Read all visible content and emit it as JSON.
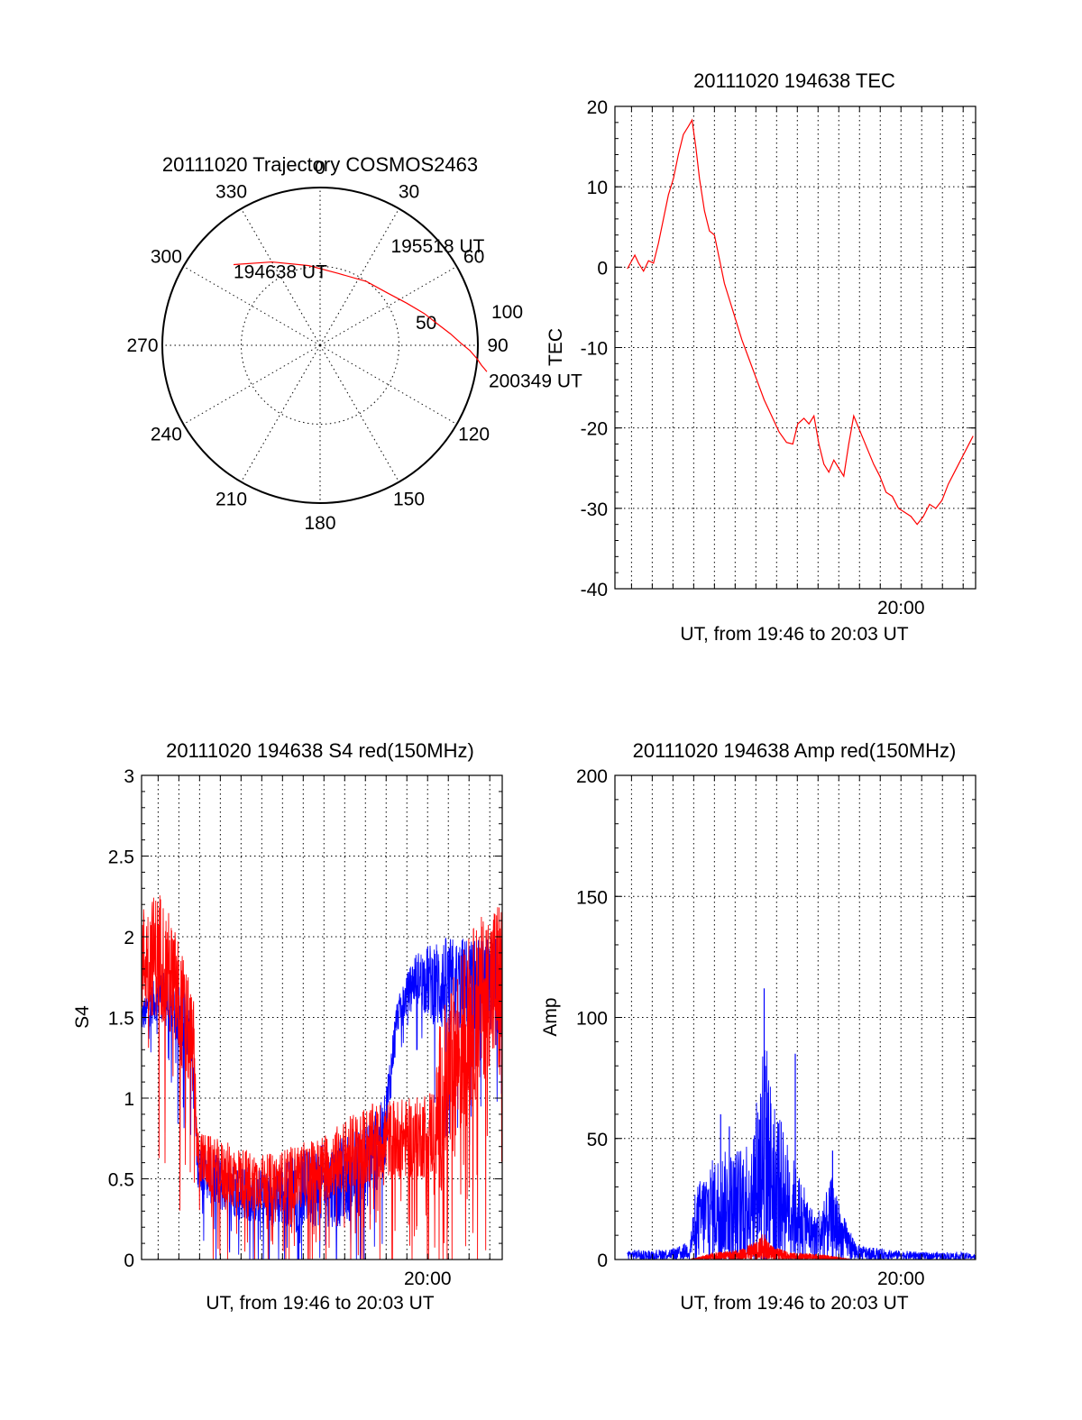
{
  "colors": {
    "primary": "#ff0000",
    "secondary": "#0000ff",
    "axes": "#000000"
  },
  "chart_data": [
    {
      "id": "trajectory",
      "type": "polar",
      "title": "20111020 Trajectory COSMOS2463",
      "angle_labels": [
        "0",
        "30",
        "60",
        "90",
        "120",
        "150",
        "180",
        "210",
        "240",
        "270",
        "300",
        "330"
      ],
      "radius_labels": [
        "50",
        "100"
      ],
      "rmax": 100,
      "grid": true,
      "track": {
        "color": "#ff0000",
        "points": [
          {
            "az": 313,
            "zd": 75
          },
          {
            "az": 330,
            "zd": 61
          },
          {
            "az": 352,
            "zd": 51
          },
          {
            "az": 14,
            "zd": 47
          },
          {
            "az": 36,
            "zd": 50
          },
          {
            "az": 52,
            "zd": 54
          },
          {
            "az": 64,
            "zd": 61
          },
          {
            "az": 73,
            "zd": 69
          },
          {
            "az": 80,
            "zd": 76
          },
          {
            "az": 85,
            "zd": 83
          },
          {
            "az": 89,
            "zd": 89
          },
          {
            "az": 92,
            "zd": 95
          },
          {
            "az": 95,
            "zd": 100
          },
          {
            "az": 97,
            "zd": 103
          },
          {
            "az": 98,
            "zd": 105
          },
          {
            "az": 99,
            "zd": 107
          }
        ],
        "labels": [
          {
            "text": "194638 UT",
            "point": 0
          },
          {
            "text": "195518 UT",
            "point": 5
          },
          {
            "text": "200349 UT",
            "point": 15
          }
        ]
      }
    },
    {
      "id": "tec",
      "type": "line",
      "title": "20111020 194638 TEC",
      "xlabel": "UT, from 19:46 to 20:03 UT",
      "ylabel": "TEC",
      "xlim": [
        19.77,
        20.06
      ],
      "ylim": [
        -40,
        20
      ],
      "yticks": [
        20,
        10,
        0,
        -10,
        -20,
        -30,
        -40
      ],
      "xticklabels": [
        {
          "x": 20.0,
          "label": "20:00"
        }
      ],
      "grid": true,
      "series": [
        {
          "color": "#ff0000",
          "points": [
            [
              19.78,
              -0.2
            ],
            [
              19.786,
              1.5
            ],
            [
              19.789,
              0.5
            ],
            [
              19.793,
              -0.5
            ],
            [
              19.797,
              0.8
            ],
            [
              19.801,
              0.5
            ],
            [
              19.805,
              3.0
            ],
            [
              19.809,
              6.0
            ],
            [
              19.813,
              9.0
            ],
            [
              19.817,
              11.0
            ],
            [
              19.821,
              14.0
            ],
            [
              19.825,
              16.5
            ],
            [
              19.829,
              17.5
            ],
            [
              19.832,
              18.3
            ],
            [
              19.835,
              15.0
            ],
            [
              19.838,
              11.0
            ],
            [
              19.842,
              7.0
            ],
            [
              19.846,
              4.5
            ],
            [
              19.85,
              4.0
            ],
            [
              19.854,
              1.0
            ],
            [
              19.858,
              -2.0
            ],
            [
              19.862,
              -4.0
            ],
            [
              19.866,
              -6.0
            ],
            [
              19.872,
              -9.0
            ],
            [
              19.878,
              -11.5
            ],
            [
              19.884,
              -14.0
            ],
            [
              19.89,
              -16.5
            ],
            [
              19.896,
              -18.5
            ],
            [
              19.902,
              -20.5
            ],
            [
              19.908,
              -21.8
            ],
            [
              19.913,
              -22.0
            ],
            [
              19.917,
              -19.5
            ],
            [
              19.922,
              -18.8
            ],
            [
              19.926,
              -19.5
            ],
            [
              19.93,
              -18.5
            ],
            [
              19.934,
              -22.0
            ],
            [
              19.938,
              -24.5
            ],
            [
              19.942,
              -25.5
            ],
            [
              19.946,
              -24.0
            ],
            [
              19.95,
              -25.0
            ],
            [
              19.954,
              -26.0
            ],
            [
              19.958,
              -22.0
            ],
            [
              19.962,
              -18.5
            ],
            [
              19.966,
              -20.0
            ],
            [
              19.97,
              -21.5
            ],
            [
              19.974,
              -23.0
            ],
            [
              19.978,
              -24.5
            ],
            [
              19.983,
              -26.0
            ],
            [
              19.988,
              -28.0
            ],
            [
              19.993,
              -28.5
            ],
            [
              19.998,
              -30.0
            ],
            [
              20.003,
              -30.5
            ],
            [
              20.008,
              -31.0
            ],
            [
              20.013,
              -32.0
            ],
            [
              20.018,
              -31.0
            ],
            [
              20.023,
              -29.5
            ],
            [
              20.028,
              -30.0
            ],
            [
              20.033,
              -29.0
            ],
            [
              20.038,
              -27.0
            ],
            [
              20.043,
              -25.5
            ],
            [
              20.048,
              -24.0
            ],
            [
              20.053,
              -22.5
            ],
            [
              20.058,
              -21.0
            ]
          ]
        }
      ]
    },
    {
      "id": "s4",
      "type": "line",
      "title": "20111020 194638 S4 red(150MHz)",
      "xlabel": "UT, from 19:46 to 20:03 UT",
      "ylabel": "S4",
      "xlim": [
        19.77,
        20.06
      ],
      "ylim": [
        0,
        3
      ],
      "yticks": [
        3,
        2.5,
        2,
        1.5,
        1,
        0.5,
        0
      ],
      "xticklabels": [
        {
          "x": 20.0,
          "label": "20:00"
        }
      ],
      "grid": true,
      "series": [
        {
          "color": "#0000ff",
          "noisy": true,
          "envelope": [
            [
              19.77,
              1.6,
              1.4
            ],
            [
              19.785,
              1.8,
              1.5
            ],
            [
              19.8,
              1.7,
              1.3
            ],
            [
              19.81,
              1.6,
              1.2
            ],
            [
              19.815,
              0.7,
              0.45
            ],
            [
              19.83,
              0.65,
              0.3
            ],
            [
              19.85,
              0.6,
              0.25
            ],
            [
              19.87,
              0.55,
              0.2
            ],
            [
              19.89,
              0.65,
              0.2
            ],
            [
              19.91,
              0.7,
              0.2
            ],
            [
              19.93,
              0.75,
              0.2
            ],
            [
              19.95,
              0.85,
              0.3
            ],
            [
              19.965,
              1.0,
              0.5
            ],
            [
              19.975,
              1.6,
              1.4
            ],
            [
              19.99,
              1.9,
              1.6
            ],
            [
              20.01,
              2.0,
              1.4
            ],
            [
              20.03,
              2.0,
              1.4
            ],
            [
              20.05,
              2.0,
              1.4
            ],
            [
              20.06,
              2.0,
              1.4
            ]
          ]
        },
        {
          "color": "#ff0000",
          "noisy": true,
          "envelope": [
            [
              19.77,
              2.2,
              1.5
            ],
            [
              19.785,
              2.3,
              1.5
            ],
            [
              19.8,
              2.0,
              1.2
            ],
            [
              19.812,
              1.6,
              1.0
            ],
            [
              19.815,
              0.8,
              0.5
            ],
            [
              19.83,
              0.75,
              0.35
            ],
            [
              19.85,
              0.7,
              0.3
            ],
            [
              19.87,
              0.65,
              0.3
            ],
            [
              19.89,
              0.7,
              0.3
            ],
            [
              19.91,
              0.75,
              0.35
            ],
            [
              19.93,
              0.85,
              0.4
            ],
            [
              19.95,
              0.95,
              0.45
            ],
            [
              19.97,
              1.0,
              0.5
            ],
            [
              19.99,
              1.0,
              0.5
            ],
            [
              20.006,
              1.1,
              0.5
            ],
            [
              20.01,
              1.5,
              0.4
            ],
            [
              20.03,
              2.0,
              0.8
            ],
            [
              20.05,
              2.2,
              1.2
            ],
            [
              20.06,
              2.3,
              1.0
            ]
          ]
        }
      ]
    },
    {
      "id": "amp",
      "type": "line",
      "title": "20111020 194638 Amp red(150MHz)",
      "xlabel": "UT, from 19:46 to 20:03 UT",
      "ylabel": "Amp",
      "xlim": [
        19.77,
        20.06
      ],
      "ylim": [
        0,
        200
      ],
      "yticks": [
        200,
        150,
        100,
        50,
        0
      ],
      "xticklabels": [
        {
          "x": 20.0,
          "label": "20:00"
        }
      ],
      "grid": true,
      "series": [
        {
          "color": "#0000ff",
          "noisy": true,
          "envelope": [
            [
              19.78,
              4,
              0
            ],
            [
              19.8,
              4,
              0
            ],
            [
              19.82,
              5,
              0
            ],
            [
              19.83,
              8,
              0
            ],
            [
              19.835,
              30,
              0
            ],
            [
              19.845,
              40,
              0
            ],
            [
              19.855,
              45,
              0
            ],
            [
              19.865,
              45,
              0
            ],
            [
              19.875,
              50,
              0
            ],
            [
              19.885,
              70,
              0
            ],
            [
              19.89,
              100,
              0
            ],
            [
              19.895,
              75,
              0
            ],
            [
              19.905,
              55,
              0
            ],
            [
              19.915,
              40,
              0
            ],
            [
              19.922,
              30,
              0
            ],
            [
              19.93,
              20,
              0
            ],
            [
              19.938,
              25,
              0
            ],
            [
              19.945,
              35,
              0
            ],
            [
              19.952,
              20,
              0
            ],
            [
              19.965,
              6,
              0
            ],
            [
              19.99,
              4,
              0
            ],
            [
              20.02,
              3,
              0
            ],
            [
              20.05,
              3,
              0
            ],
            [
              20.06,
              2,
              0
            ]
          ],
          "spikes": [
            [
              19.855,
              60
            ],
            [
              19.862,
              55
            ],
            [
              19.89,
              112
            ],
            [
              19.915,
              85
            ],
            [
              19.945,
              45
            ]
          ]
        },
        {
          "color": "#ff0000",
          "noisy": true,
          "envelope": [
            [
              19.83,
              0,
              0
            ],
            [
              19.85,
              3,
              0
            ],
            [
              19.87,
              4,
              0
            ],
            [
              19.885,
              8,
              0
            ],
            [
              19.89,
              12,
              0
            ],
            [
              19.895,
              6,
              0
            ],
            [
              19.91,
              3,
              0
            ],
            [
              19.94,
              2,
              0
            ],
            [
              19.96,
              0,
              0
            ]
          ]
        }
      ]
    }
  ]
}
